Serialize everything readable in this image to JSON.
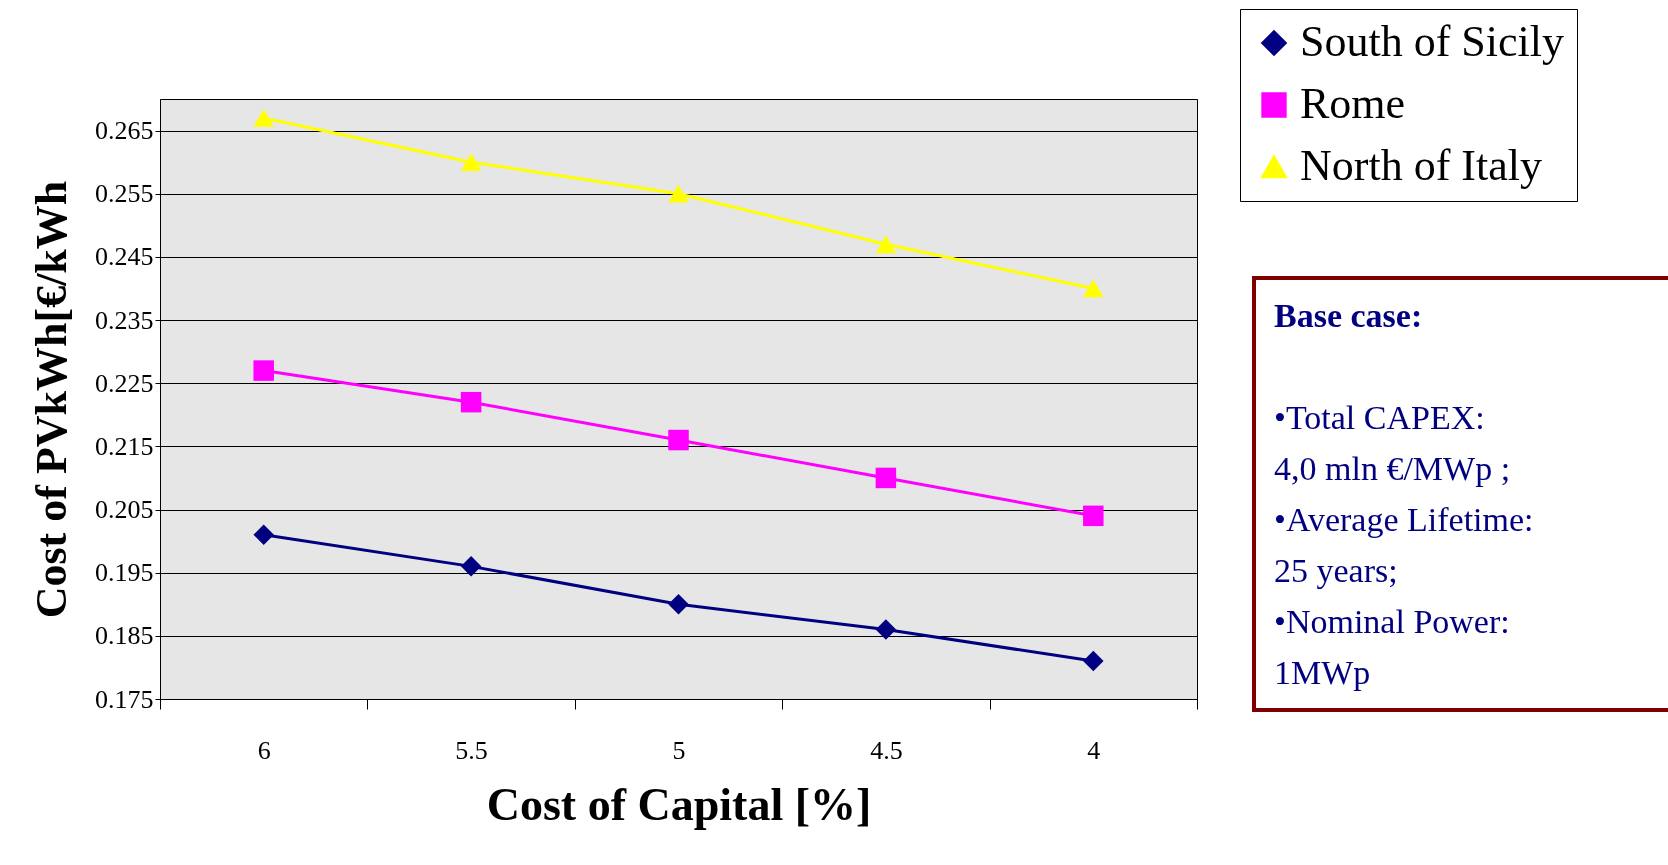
{
  "chart_data": {
    "type": "line",
    "xlabel": "Cost of Capital [%]",
    "ylabel": "Cost of PVkWh[€/kWh",
    "categories": [
      "6",
      "5.5",
      "5",
      "4.5",
      "4"
    ],
    "series": [
      {
        "name": "South of Sicily",
        "color": "#000080",
        "marker": "diamond",
        "values": [
          0.201,
          0.196,
          0.19,
          0.186,
          0.181
        ]
      },
      {
        "name": "Rome",
        "color": "#ff00ff",
        "marker": "square",
        "values": [
          0.227,
          0.222,
          0.216,
          0.21,
          0.204
        ]
      },
      {
        "name": "North of Italy",
        "color": "#ffff00",
        "marker": "triangle",
        "values": [
          0.267,
          0.26,
          0.255,
          0.247,
          0.24
        ]
      }
    ],
    "ylim": [
      0.175,
      0.27
    ],
    "yticks": [
      0.175,
      0.185,
      0.195,
      0.205,
      0.215,
      0.225,
      0.235,
      0.245,
      0.255,
      0.265
    ],
    "grid": "y",
    "legend": "top right",
    "annotations": [
      "Base case:",
      "•Total CAPEX:",
      "4,0 mln €/MWp ;",
      "•Average Lifetime:",
      "25 years;",
      "•Nominal Power:",
      "1MWp"
    ]
  }
}
